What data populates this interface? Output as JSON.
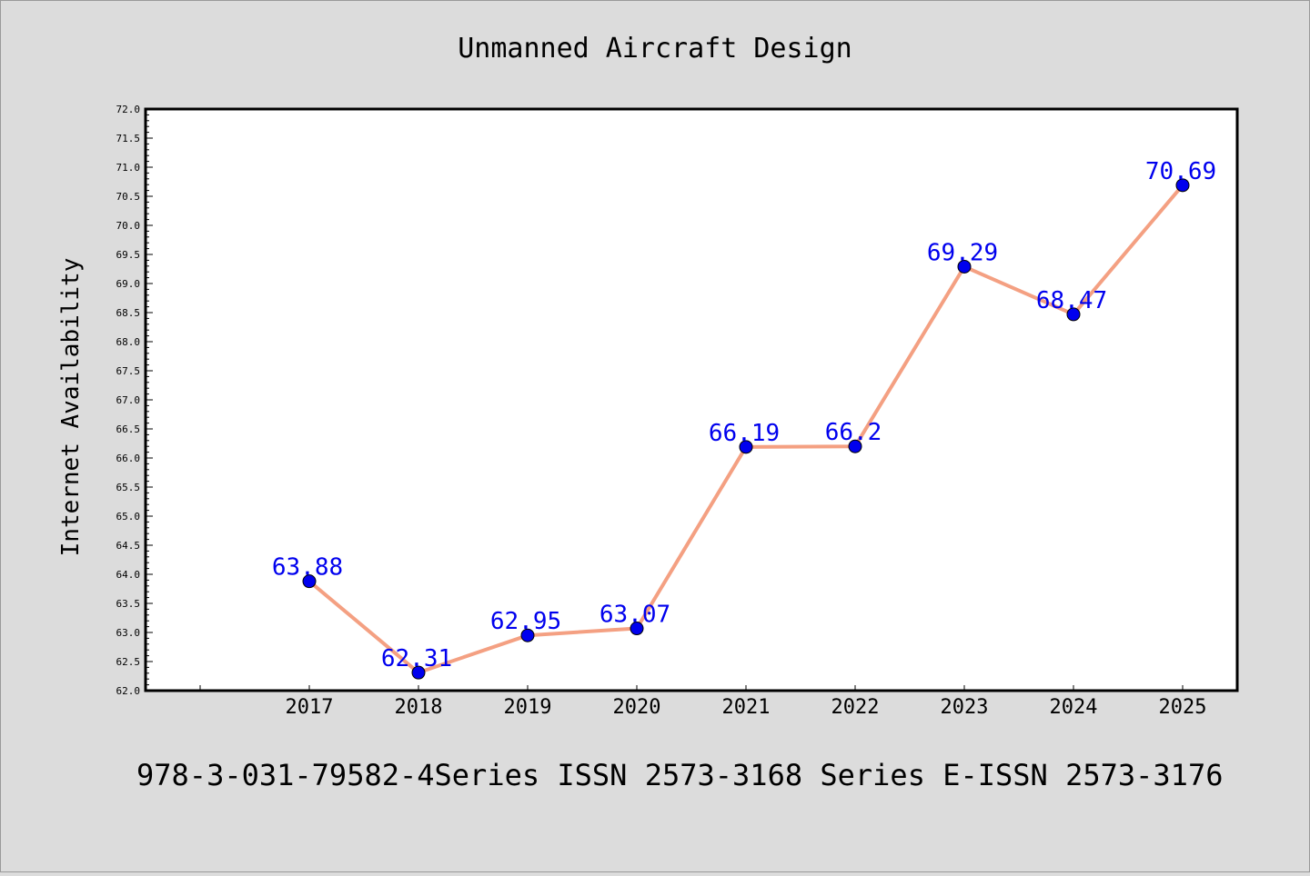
{
  "chart_data": {
    "type": "line",
    "title": "Unmanned Aircraft Design",
    "xlabel": "",
    "ylabel": "Internet Availability",
    "categories": [
      "2017",
      "2018",
      "2019",
      "2020",
      "2021",
      "2022",
      "2023",
      "2024",
      "2025"
    ],
    "series": [
      {
        "values": [
          63.88,
          62.31,
          62.95,
          63.07,
          66.19,
          66.2,
          69.29,
          68.47,
          70.69
        ],
        "data_labels": [
          "63.88",
          "62.31",
          "62.95",
          "63.07",
          "66.19",
          "66.2",
          "69.29",
          "68.47",
          "70.69"
        ],
        "line_color": "#f4a082",
        "marker_color": "#0000ee"
      }
    ],
    "ylim": [
      62.0,
      72.0
    ],
    "yticks": [
      "62.0",
      "62.5",
      "63.0",
      "63.5",
      "64.0",
      "64.5",
      "65.0",
      "65.5",
      "66.0",
      "66.5",
      "67.0",
      "67.5",
      "68.0",
      "68.5",
      "69.0",
      "69.5",
      "70.0",
      "70.5",
      "71.0",
      "71.5",
      "72.0"
    ],
    "grid": false,
    "label_color": "#0000ee",
    "background": "#dcdcdc",
    "plot_background": "#ffffff"
  },
  "footer": {
    "text": "978-3-031-79582-4Series ISSN 2573-3168 Series E-ISSN 2573-3176"
  }
}
